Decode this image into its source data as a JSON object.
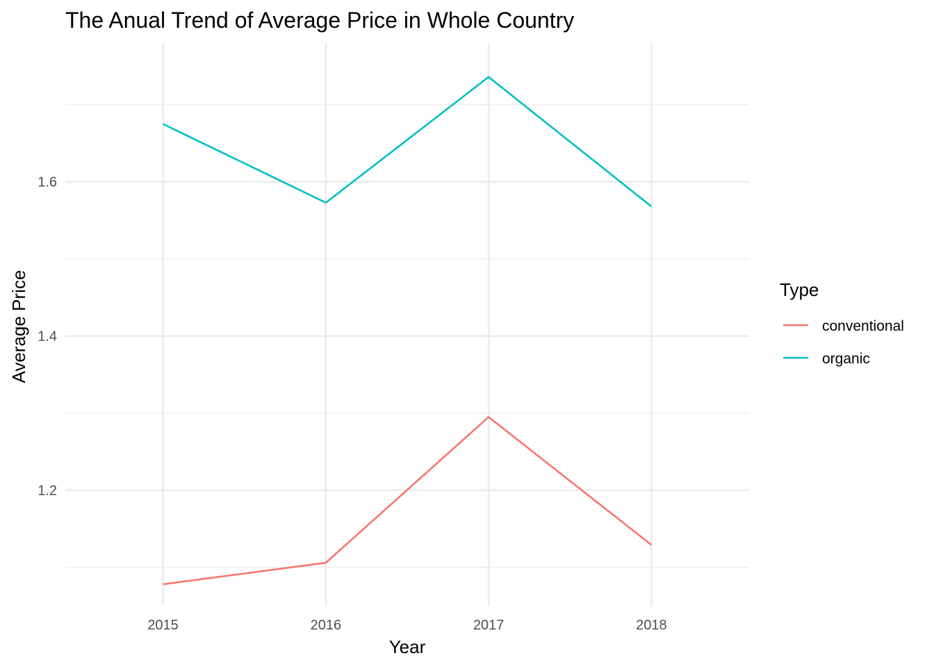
{
  "chart_data": {
    "type": "line",
    "title": "The Anual Trend of Average Price in Whole Country",
    "xlabel": "Year",
    "ylabel": "Average Price",
    "x": [
      2015,
      2016,
      2017,
      2018
    ],
    "x_tick_labels": [
      "2015",
      "2016",
      "2017",
      "2018"
    ],
    "y_ticks": [
      1.2,
      1.4,
      1.6
    ],
    "y_tick_labels": [
      "1.2",
      "1.4",
      "1.6"
    ],
    "xlim": [
      2014.4,
      2018.6
    ],
    "ylim": [
      1.05,
      1.78
    ],
    "grid": true,
    "legend": {
      "title": "Type",
      "placement": "right"
    },
    "series": [
      {
        "name": "conventional",
        "color": "#F8766D",
        "values": [
          1.078,
          1.106,
          1.295,
          1.129
        ]
      },
      {
        "name": "organic",
        "color": "#00BFC4",
        "values": [
          1.675,
          1.573,
          1.736,
          1.568
        ]
      }
    ]
  }
}
